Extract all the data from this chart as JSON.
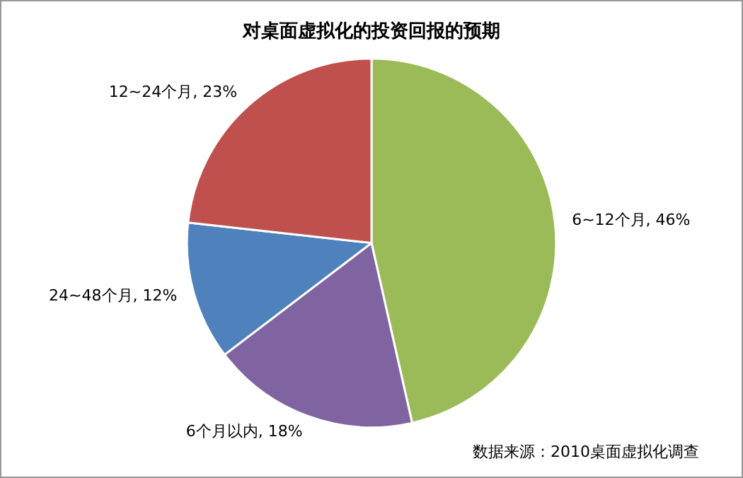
{
  "chart_data": {
    "type": "pie",
    "title": "对桌面虚拟化的投资回报的预期",
    "categories": [
      "6~12个月",
      "6个月以内",
      "24~48个月",
      "12~24个月"
    ],
    "values": [
      46,
      18,
      12,
      23
    ],
    "colors": [
      "#9bbb59",
      "#8064a2",
      "#4f81bd",
      "#c0504d"
    ],
    "value_labels": [
      "46%",
      "18%",
      "12%",
      "23%"
    ],
    "annotations": [
      "数据来源：2010桌面虚拟化调查"
    ],
    "legend": false
  }
}
